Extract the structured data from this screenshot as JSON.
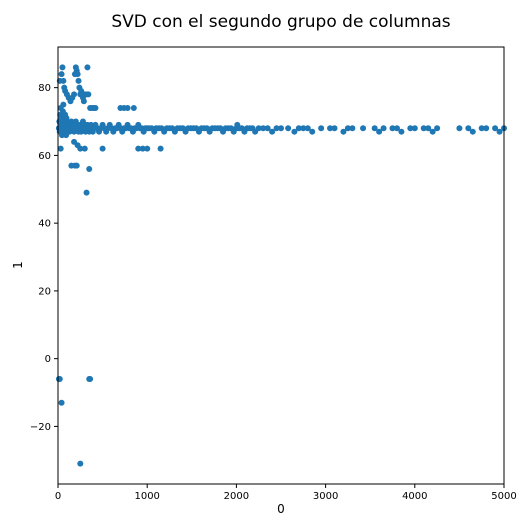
{
  "chart_data": {
    "type": "scatter",
    "title": "SVD con el segundo grupo de columnas",
    "xlabel": "0",
    "ylabel": "1",
    "xlim": [
      0,
      5000
    ],
    "ylim": [
      -37,
      92
    ],
    "x_ticks": [
      0,
      1000,
      2000,
      3000,
      4000,
      5000
    ],
    "y_ticks": [
      -20,
      0,
      20,
      40,
      60,
      80
    ],
    "x_tick_labels": [
      "0",
      "1000",
      "2000",
      "3000",
      "4000",
      "5000"
    ],
    "y_tick_labels": [
      "−20",
      "0",
      "20",
      "40",
      "60",
      "80"
    ],
    "grid": false,
    "legend": "none",
    "marker_color": "#1f77b4",
    "series": [
      {
        "points": [
          [
            10,
            68
          ],
          [
            15,
            70
          ],
          [
            20,
            67
          ],
          [
            25,
            72
          ],
          [
            30,
            74
          ],
          [
            35,
            69
          ],
          [
            40,
            71
          ],
          [
            45,
            66
          ],
          [
            50,
            68
          ],
          [
            55,
            73
          ],
          [
            60,
            75
          ],
          [
            65,
            70
          ],
          [
            70,
            67
          ],
          [
            75,
            69
          ],
          [
            80,
            72
          ],
          [
            85,
            68
          ],
          [
            90,
            66
          ],
          [
            95,
            71
          ],
          [
            100,
            70
          ],
          [
            110,
            68
          ],
          [
            120,
            69
          ],
          [
            130,
            67
          ],
          [
            140,
            68
          ],
          [
            150,
            70
          ],
          [
            160,
            68
          ],
          [
            170,
            69
          ],
          [
            180,
            67
          ],
          [
            190,
            68
          ],
          [
            200,
            70
          ],
          [
            210,
            68
          ],
          [
            220,
            69
          ],
          [
            230,
            67
          ],
          [
            240,
            68
          ],
          [
            250,
            69
          ],
          [
            260,
            67
          ],
          [
            270,
            68
          ],
          [
            280,
            70
          ],
          [
            290,
            68
          ],
          [
            300,
            69
          ],
          [
            310,
            67
          ],
          [
            320,
            68
          ],
          [
            330,
            69
          ],
          [
            340,
            68
          ],
          [
            350,
            67
          ],
          [
            360,
            68
          ],
          [
            370,
            69
          ],
          [
            380,
            68
          ],
          [
            390,
            67
          ],
          [
            400,
            68
          ],
          [
            420,
            69
          ],
          [
            440,
            68
          ],
          [
            460,
            67
          ],
          [
            480,
            68
          ],
          [
            500,
            69
          ],
          [
            520,
            68
          ],
          [
            540,
            67
          ],
          [
            560,
            68
          ],
          [
            580,
            69
          ],
          [
            600,
            68
          ],
          [
            620,
            67
          ],
          [
            640,
            68
          ],
          [
            660,
            68
          ],
          [
            680,
            69
          ],
          [
            700,
            68
          ],
          [
            720,
            67
          ],
          [
            740,
            68
          ],
          [
            760,
            68
          ],
          [
            780,
            69
          ],
          [
            800,
            68
          ],
          [
            820,
            68
          ],
          [
            840,
            67
          ],
          [
            860,
            68
          ],
          [
            880,
            68
          ],
          [
            900,
            69
          ],
          [
            920,
            68
          ],
          [
            940,
            68
          ],
          [
            960,
            67
          ],
          [
            980,
            68
          ],
          [
            1000,
            68
          ],
          [
            1020,
            68
          ],
          [
            1050,
            68
          ],
          [
            1080,
            67
          ],
          [
            1100,
            68
          ],
          [
            1130,
            68
          ],
          [
            1160,
            68
          ],
          [
            1190,
            67
          ],
          [
            1220,
            68
          ],
          [
            1250,
            68
          ],
          [
            1280,
            68
          ],
          [
            1310,
            67
          ],
          [
            1340,
            68
          ],
          [
            1370,
            68
          ],
          [
            1400,
            68
          ],
          [
            1430,
            67
          ],
          [
            1460,
            68
          ],
          [
            1490,
            68
          ],
          [
            1520,
            68
          ],
          [
            1550,
            68
          ],
          [
            1580,
            67
          ],
          [
            1610,
            68
          ],
          [
            1640,
            68
          ],
          [
            1670,
            68
          ],
          [
            1700,
            67
          ],
          [
            1730,
            68
          ],
          [
            1760,
            68
          ],
          [
            1790,
            68
          ],
          [
            1820,
            68
          ],
          [
            1850,
            67
          ],
          [
            1880,
            68
          ],
          [
            1910,
            68
          ],
          [
            1940,
            68
          ],
          [
            1970,
            67
          ],
          [
            2000,
            68
          ],
          [
            2010,
            69
          ],
          [
            2030,
            68
          ],
          [
            2060,
            68
          ],
          [
            2090,
            67
          ],
          [
            2120,
            68
          ],
          [
            2150,
            68
          ],
          [
            2180,
            68
          ],
          [
            2210,
            67
          ],
          [
            2250,
            68
          ],
          [
            2300,
            68
          ],
          [
            2350,
            68
          ],
          [
            2400,
            67
          ],
          [
            2450,
            68
          ],
          [
            2500,
            68
          ],
          [
            2580,
            68
          ],
          [
            2650,
            67
          ],
          [
            2700,
            68
          ],
          [
            2750,
            68
          ],
          [
            2800,
            68
          ],
          [
            2850,
            67
          ],
          [
            2950,
            68
          ],
          [
            3050,
            68
          ],
          [
            3100,
            68
          ],
          [
            3200,
            67
          ],
          [
            3250,
            68
          ],
          [
            3300,
            68
          ],
          [
            3420,
            68
          ],
          [
            3550,
            68
          ],
          [
            3600,
            67
          ],
          [
            3650,
            68
          ],
          [
            3750,
            68
          ],
          [
            3800,
            68
          ],
          [
            3850,
            67
          ],
          [
            3950,
            68
          ],
          [
            4000,
            68
          ],
          [
            4100,
            68
          ],
          [
            4150,
            68
          ],
          [
            4200,
            67
          ],
          [
            4250,
            68
          ],
          [
            4500,
            68
          ],
          [
            4600,
            68
          ],
          [
            4650,
            67
          ],
          [
            4750,
            68
          ],
          [
            4800,
            68
          ],
          [
            4900,
            68
          ],
          [
            4950,
            67
          ],
          [
            5000,
            68
          ],
          [
            20,
            82
          ],
          [
            40,
            84
          ],
          [
            50,
            86
          ],
          [
            60,
            82
          ],
          [
            70,
            80
          ],
          [
            80,
            79
          ],
          [
            100,
            78
          ],
          [
            120,
            77
          ],
          [
            140,
            76
          ],
          [
            160,
            77
          ],
          [
            180,
            78
          ],
          [
            190,
            84
          ],
          [
            200,
            86
          ],
          [
            210,
            85
          ],
          [
            220,
            84
          ],
          [
            230,
            82
          ],
          [
            240,
            80
          ],
          [
            250,
            78
          ],
          [
            260,
            79
          ],
          [
            270,
            78
          ],
          [
            280,
            77
          ],
          [
            290,
            76
          ],
          [
            300,
            78
          ],
          [
            320,
            78
          ],
          [
            330,
            86
          ],
          [
            340,
            78
          ],
          [
            360,
            74
          ],
          [
            380,
            74
          ],
          [
            400,
            74
          ],
          [
            420,
            74
          ],
          [
            700,
            74
          ],
          [
            740,
            74
          ],
          [
            780,
            74
          ],
          [
            850,
            74
          ],
          [
            30,
            62
          ],
          [
            180,
            64
          ],
          [
            220,
            63
          ],
          [
            250,
            62
          ],
          [
            300,
            62
          ],
          [
            500,
            62
          ],
          [
            900,
            62
          ],
          [
            950,
            62
          ],
          [
            1000,
            62
          ],
          [
            1150,
            62
          ],
          [
            150,
            57
          ],
          [
            190,
            57
          ],
          [
            210,
            57
          ],
          [
            350,
            56
          ],
          [
            320,
            49
          ],
          [
            10,
            -6
          ],
          [
            20,
            -6
          ],
          [
            350,
            -6
          ],
          [
            360,
            -6
          ],
          [
            40,
            -13
          ],
          [
            250,
            -31
          ]
        ]
      }
    ]
  }
}
